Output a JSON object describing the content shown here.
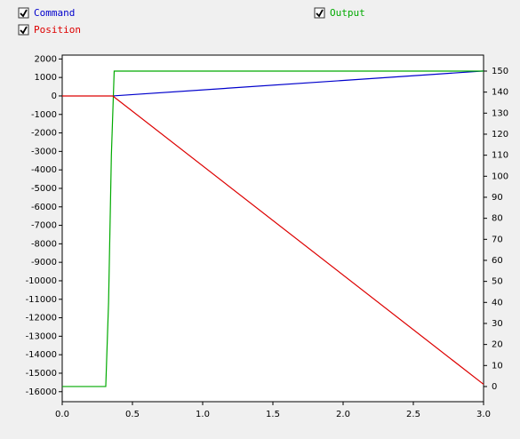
{
  "chart_data": {
    "type": "line",
    "series": [
      {
        "name": "Command",
        "color": "#0000cc",
        "checked": true,
        "axis": "y",
        "x": [
          0.36,
          3.0
        ],
        "values": [
          0,
          1350
        ]
      },
      {
        "name": "Output",
        "color": "#00aa00",
        "checked": true,
        "axis": "y2",
        "x": [
          0,
          0.31,
          0.33,
          0.35,
          0.37,
          3.0
        ],
        "values": [
          0,
          0,
          40,
          110,
          150,
          150
        ]
      },
      {
        "name": "Position",
        "color": "#dd0000",
        "checked": true,
        "axis": "y",
        "x": [
          0,
          0.36,
          3.0
        ],
        "values": [
          0,
          0,
          -15600
        ]
      }
    ],
    "xlim": [
      0,
      3.0
    ],
    "xticks": [
      {
        "value": 0,
        "label": "0.0"
      },
      0.5,
      {
        "value": 1,
        "label": "1.0"
      },
      1.5,
      {
        "value": 2,
        "label": "2.0"
      },
      2.5,
      {
        "value": 3,
        "label": "3.0"
      }
    ],
    "ylim": [
      -16540,
      2210
    ],
    "yticks": [
      -16000,
      -15000,
      -14000,
      -13000,
      -12000,
      -11000,
      -10000,
      -9000,
      -8000,
      -7000,
      -6000,
      -5000,
      -4000,
      -3000,
      -2000,
      -1000,
      0,
      1000,
      2000
    ],
    "y2lim": [
      -7.2,
      157.6
    ],
    "y2ticks": [
      0,
      10,
      20,
      30,
      40,
      50,
      60,
      70,
      80,
      90,
      100,
      110,
      120,
      130,
      140,
      150
    ]
  }
}
